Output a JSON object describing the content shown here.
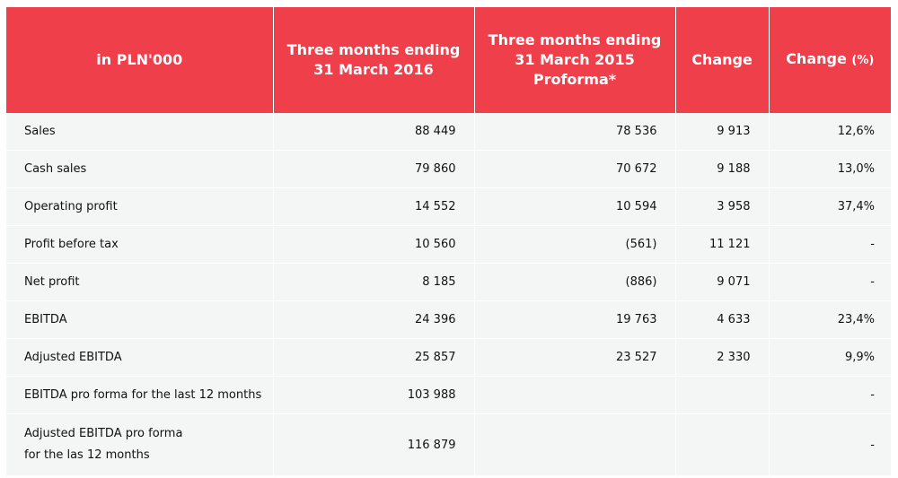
{
  "table": {
    "headers": [
      {
        "lines": [
          "in PLN'000"
        ]
      },
      {
        "lines": [
          "Three months ending",
          "31 March 2016"
        ]
      },
      {
        "lines": [
          "Three months ending",
          "31 March 2015",
          "Proforma*"
        ]
      },
      {
        "lines": [
          "Change"
        ]
      },
      {
        "main": "Change",
        "suffix": "(%)"
      }
    ],
    "rows": [
      {
        "label": "Sales",
        "cells": [
          "88 449",
          "78 536",
          "9 913",
          "12,6%"
        ]
      },
      {
        "label": "Cash sales",
        "cells": [
          "79 860",
          "70 672",
          "9 188",
          "13,0%"
        ]
      },
      {
        "label": "Operating profit",
        "cells": [
          "14 552",
          "10 594",
          "3 958",
          "37,4%"
        ]
      },
      {
        "label": "Profit before tax",
        "cells": [
          "10 560",
          "(561)",
          "11 121",
          "-"
        ]
      },
      {
        "label": "Net profit",
        "cells": [
          "8 185",
          "(886)",
          "9 071",
          "-"
        ]
      },
      {
        "label": "EBITDA",
        "cells": [
          "24 396",
          "19 763",
          "4 633",
          "23,4%"
        ]
      },
      {
        "label": "Adjusted EBITDA",
        "cells": [
          "25 857",
          "23 527",
          "2 330",
          "9,9%"
        ]
      },
      {
        "label": "EBITDA pro forma for the last 12 months",
        "cells": [
          "103 988",
          "",
          "",
          "-"
        ]
      },
      {
        "label_lines": [
          "Adjusted EBITDA pro forma",
          "for the las 12 months"
        ],
        "cells": [
          "116 879",
          "",
          "",
          "-"
        ]
      }
    ]
  },
  "colors": {
    "header_bg": "#ee3f4b",
    "row_bg": "#f4f5f5"
  }
}
